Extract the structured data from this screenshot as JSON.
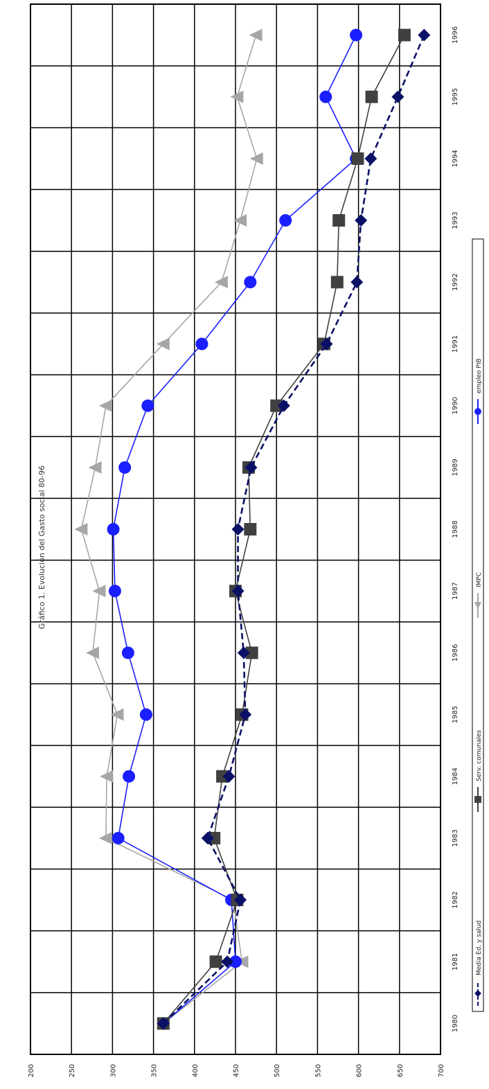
{
  "chart_data": {
    "type": "line",
    "title": "Gráfico 1. Evolución del Gasto social 80-96",
    "xlabel": "",
    "ylabel": "",
    "ylim": [
      200,
      700
    ],
    "y_ticks": [
      "200",
      "250",
      "300",
      "350",
      "400",
      "450",
      "500",
      "550",
      "600",
      "650",
      "700"
    ],
    "categories": [
      "1980",
      "1981",
      "1982",
      "1983",
      "1984",
      "1985",
      "1986",
      "1987",
      "1988",
      "1989",
      "1990",
      "1991",
      "1992",
      "1993",
      "1994",
      "1995",
      "1996"
    ],
    "grid": true,
    "legend_position": "bottom",
    "orientation": "rotated-90-clockwise",
    "series": [
      {
        "name": "Media Ed. y salud",
        "color": "#0a1066",
        "marker": "diamond",
        "dash": "dashed",
        "values": [
          362,
          440,
          456,
          416,
          442,
          462,
          460,
          453,
          453,
          469,
          509,
          561,
          598,
          603,
          615,
          648,
          680
        ]
      },
      {
        "name": "Serv. comunales",
        "color": "#404040",
        "marker": "square",
        "dash": "solid",
        "values": [
          362,
          426,
          452,
          424,
          434,
          458,
          470,
          450,
          468,
          466,
          500,
          558,
          574,
          576,
          599,
          616,
          656
        ]
      },
      {
        "name": "IMPC",
        "color": "#a6a6a6",
        "marker": "triangle",
        "dash": "solid",
        "values": [
          362,
          458,
          447,
          292,
          293,
          306,
          276,
          284,
          262,
          279,
          292,
          362,
          433,
          456,
          476,
          452,
          475
        ]
      },
      {
        "name": "empleo PIB",
        "color": "#1a1fff",
        "marker": "circle",
        "dash": "solid",
        "values": [
          362,
          450,
          445,
          307,
          320,
          341,
          319,
          303,
          301,
          315,
          343,
          409,
          468,
          511,
          597,
          560,
          597
        ]
      }
    ]
  }
}
